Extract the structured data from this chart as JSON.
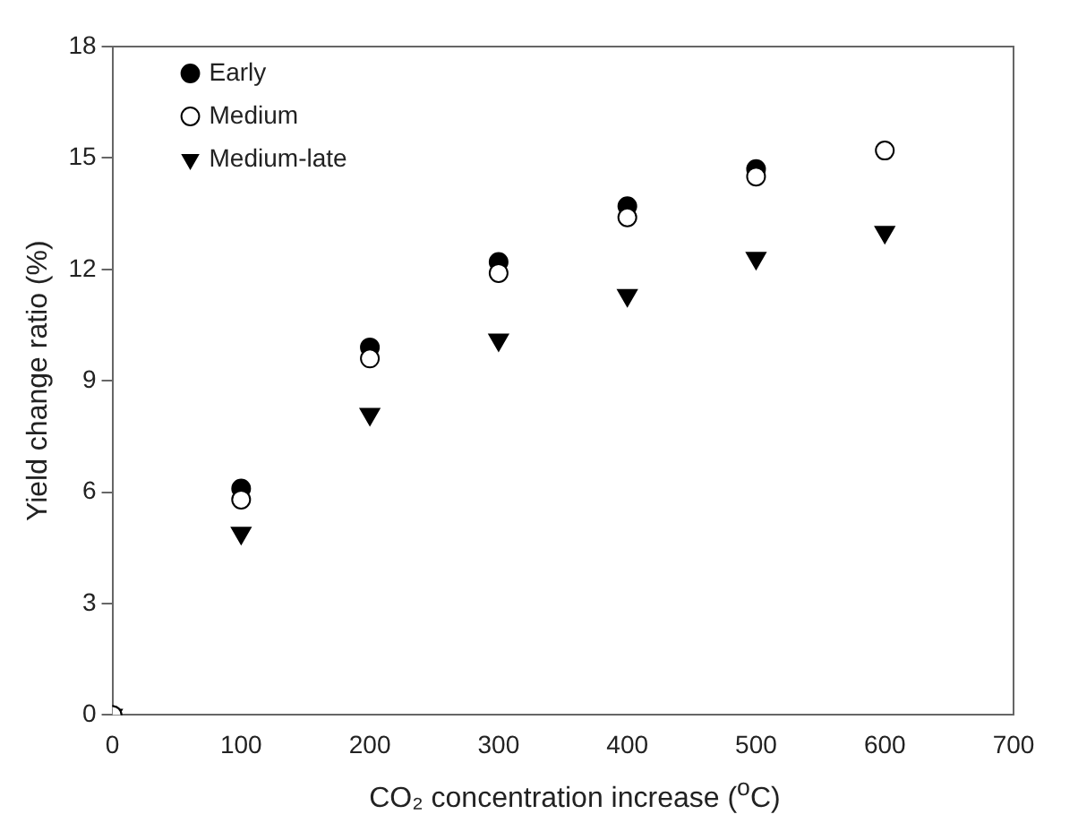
{
  "chart_data": {
    "type": "scatter",
    "xlabel": "CO₂ concentration increase ($^{o}$C)",
    "ylabel": "Yield change ratio (%)",
    "x": [
      0,
      100,
      200,
      300,
      400,
      500,
      600
    ],
    "series": [
      {
        "name": "Early",
        "color": "#000000",
        "marker": "circle",
        "values": [
          0,
          6.1,
          9.9,
          12.2,
          13.7,
          14.7,
          null
        ]
      },
      {
        "name": "Medium",
        "color": "#ffffff",
        "marker": "circle",
        "values": [
          0,
          5.8,
          9.6,
          11.9,
          13.4,
          14.5,
          15.2
        ]
      },
      {
        "name": "Medium-late",
        "color": "#000000",
        "marker": "triangle",
        "values": [
          0,
          4.9,
          8.1,
          10.1,
          11.3,
          12.3,
          13.0
        ]
      }
    ],
    "xlim": [
      0,
      700
    ],
    "xticks": [
      0,
      100,
      200,
      300,
      400,
      500,
      600,
      700
    ],
    "ylim": [
      0,
      18
    ],
    "yticks": [
      0,
      3,
      6,
      9,
      12,
      15,
      18
    ],
    "grid": false,
    "legend": "top left"
  }
}
